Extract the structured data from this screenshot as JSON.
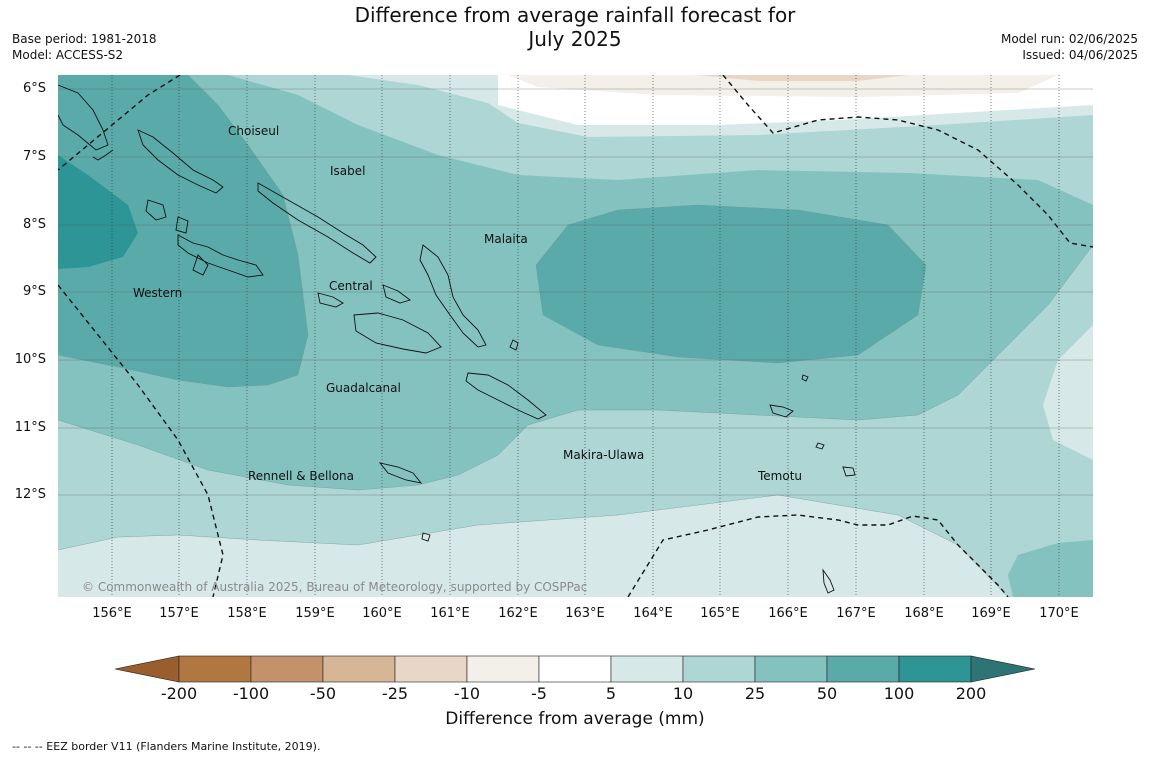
{
  "title_line1": "Difference from average rainfall forecast for",
  "title_line2": "July 2025",
  "base_period": "Base period: 1981-2018",
  "model": "Model: ACCESS-S2",
  "model_run": "Model run: 02/06/2025",
  "issued": "Issued: 04/06/2025",
  "latitudes": [
    "6°S",
    "7°S",
    "8°S",
    "9°S",
    "10°S",
    "11°S",
    "12°S"
  ],
  "longitudes": [
    "156°E",
    "157°E",
    "158°E",
    "159°E",
    "160°E",
    "161°E",
    "162°E",
    "163°E",
    "164°E",
    "165°E",
    "166°E",
    "167°E",
    "168°E",
    "169°E",
    "170°E"
  ],
  "regions": {
    "choiseul": "Choiseul",
    "isabel": "Isabel",
    "malaita": "Malaita",
    "western": "Western",
    "central": "Central",
    "guadalcanal": "Guadalcanal",
    "rennell": "Rennell & Bellona",
    "makira": "Makira-Ulawa",
    "temotu": "Temotu"
  },
  "copyright": "© Commonwealth of Australia 2025, Bureau of Meteorology, supported by COSPPac",
  "colorbar": {
    "ticks": [
      "-200",
      "-100",
      "-50",
      "-25",
      "-10",
      "-5",
      "5",
      "10",
      "25",
      "50",
      "100",
      "200"
    ],
    "colors": [
      "#b07840",
      "#c3926a",
      "#d7b597",
      "#e8d7c6",
      "#f3efe9",
      "#ffffff",
      "#d6e9e8",
      "#add6d5",
      "#84c2c0",
      "#5aaaaa",
      "#2d9595"
    ],
    "under_color": "#9a5d2e",
    "over_color": "#2e7474",
    "title": "Difference from average (mm)"
  },
  "footnote": "--  --  -- EEZ border V11 (Flanders Marine Institute, 2019)."
}
